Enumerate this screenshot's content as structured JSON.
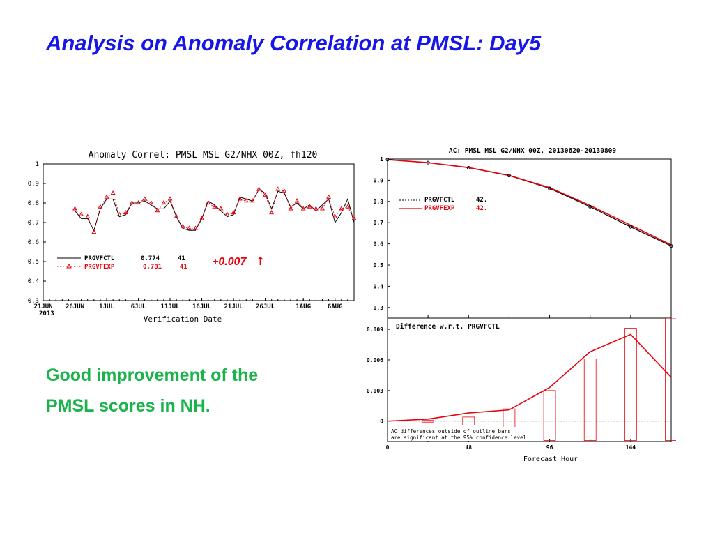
{
  "slide": {
    "title": "Analysis on Anomaly Correlation at PMSL:  Day5",
    "comment_lines": [
      "Good improvement of the",
      "PMSL scores in NH."
    ],
    "title_color": "#1616e8",
    "comment_color": "#19b34a"
  },
  "chart_data": [
    {
      "type": "line",
      "title": "Anomaly Correl: PMSL MSL G2/NHX 00Z, fh120",
      "xlabel": "Verification Date",
      "ylabel": "",
      "x_tick_labels": [
        "21JUN",
        "26JUN",
        "1JUL",
        "6JUL",
        "11JUL",
        "16JUL",
        "21JUL",
        "26JUL",
        "1AUG",
        "6AUG"
      ],
      "x_tick_days": [
        0,
        5,
        10,
        15,
        20,
        25,
        30,
        35,
        41,
        46
      ],
      "x_year_label": "2013",
      "xlim_days": [
        0,
        49
      ],
      "ylim": [
        0.3,
        1.0
      ],
      "y_ticks": [
        "0.3",
        "0.4",
        "0.5",
        "0.6",
        "0.7",
        "0.8",
        "0.9",
        "1"
      ],
      "annotation": "+0.007",
      "annotation_arrow": "↑",
      "annotation_color": "#e8000b",
      "legend_position": "lower-left",
      "series": [
        {
          "name": "PRGVFCTL",
          "score": "0.774",
          "count": "41",
          "color": "#000000",
          "style": "solid",
          "x": [
            5,
            6,
            7,
            8,
            9,
            10,
            11,
            12,
            13,
            14,
            15,
            16,
            17,
            18,
            19,
            20,
            21,
            22,
            23,
            24,
            25,
            26,
            27,
            28,
            29,
            30,
            31,
            32,
            33,
            34,
            35,
            36,
            37,
            38,
            39,
            40,
            41,
            42,
            43,
            44,
            45,
            46,
            47,
            48,
            49
          ],
          "values": [
            0.76,
            0.72,
            0.72,
            0.66,
            0.77,
            0.82,
            0.82,
            0.73,
            0.74,
            0.8,
            0.8,
            0.81,
            0.79,
            0.77,
            0.77,
            0.81,
            0.73,
            0.67,
            0.66,
            0.66,
            0.72,
            0.81,
            0.79,
            0.76,
            0.73,
            0.74,
            0.83,
            0.82,
            0.81,
            0.87,
            0.85,
            0.77,
            0.86,
            0.85,
            0.78,
            0.8,
            0.77,
            0.79,
            0.76,
            0.79,
            0.82,
            0.7,
            0.75,
            0.82,
            0.7
          ]
        },
        {
          "name": "PRGVFEXP",
          "score": "0.781",
          "count": "41",
          "color": "#e8000b",
          "style": "dotted",
          "x": [
            5,
            6,
            7,
            8,
            9,
            10,
            11,
            12,
            13,
            14,
            15,
            16,
            17,
            18,
            19,
            20,
            21,
            22,
            23,
            24,
            25,
            26,
            27,
            28,
            29,
            30,
            31,
            32,
            33,
            34,
            35,
            36,
            37,
            38,
            39,
            40,
            41,
            42,
            43,
            44,
            45,
            46,
            47,
            48,
            49
          ],
          "values": [
            0.77,
            0.74,
            0.73,
            0.65,
            0.78,
            0.83,
            0.85,
            0.74,
            0.75,
            0.8,
            0.8,
            0.82,
            0.8,
            0.76,
            0.8,
            0.82,
            0.73,
            0.68,
            0.67,
            0.67,
            0.72,
            0.8,
            0.78,
            0.77,
            0.74,
            0.75,
            0.82,
            0.81,
            0.81,
            0.87,
            0.84,
            0.75,
            0.87,
            0.86,
            0.77,
            0.81,
            0.77,
            0.78,
            0.77,
            0.77,
            0.83,
            0.73,
            0.77,
            0.78,
            0.72
          ]
        }
      ]
    },
    {
      "type": "line",
      "title": "AC: PMSL MSL G2/NHX 00Z, 20130620-20130809",
      "xlim": [
        0,
        168
      ],
      "ylim": [
        0.25,
        1.0
      ],
      "y_ticks": [
        "0.3",
        "0.4",
        "0.5",
        "0.6",
        "0.7",
        "0.8",
        "0.9",
        "1"
      ],
      "legend_position": "upper-left",
      "series": [
        {
          "name": "PRGVFCTL",
          "count": "42.",
          "color": "#000000",
          "x": [
            0,
            24,
            48,
            72,
            96,
            120,
            144,
            168
          ],
          "values": [
            0.997,
            0.983,
            0.959,
            0.922,
            0.862,
            0.775,
            0.68,
            0.59
          ]
        },
        {
          "name": "PRGVFEXP",
          "count": "42.",
          "color": "#e8000b",
          "x": [
            0,
            24,
            48,
            72,
            96,
            120,
            144,
            168
          ],
          "values": [
            0.997,
            0.983,
            0.96,
            0.923,
            0.865,
            0.781,
            0.688,
            0.595
          ]
        }
      ]
    },
    {
      "type": "bar",
      "title": "Difference w.r.t. PRGVFCTL",
      "xlabel": "Forecast Hour",
      "x_ticks": [
        "0",
        "48",
        "96",
        "144"
      ],
      "xlim": [
        0,
        168
      ],
      "ylim": [
        -0.002,
        0.0101
      ],
      "y_ticks": [
        "0",
        "0.003",
        "0.006",
        "0.009"
      ],
      "note_lines": [
        "AC differences outside of outline bars",
        "are significant at the 95% confidence level"
      ],
      "color": "#e8000b",
      "line": {
        "x": [
          0,
          24,
          48,
          72,
          96,
          120,
          144,
          168
        ],
        "values": [
          0,
          0.0002,
          0.0008,
          0.0011,
          0.0033,
          0.0068,
          0.0085,
          0.0043
        ]
      },
      "bars": {
        "x": [
          24,
          48,
          72,
          96,
          120,
          144,
          168
        ],
        "half_width_hours": 3.5,
        "lower": [
          -0.0001,
          -0.0004,
          -0.0019,
          -0.0019,
          -0.0019,
          -0.0019,
          -0.0019
        ],
        "upper": [
          0.0001,
          0.0004,
          0.0012,
          0.003,
          0.0061,
          0.0091,
          0.0101
        ]
      }
    }
  ]
}
